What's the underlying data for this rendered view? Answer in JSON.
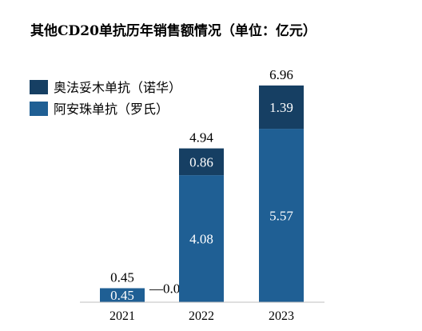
{
  "chart_data": {
    "type": "bar",
    "stacked": true,
    "title": "其他CD20单抗历年销售额情况（单位：亿元）",
    "categories": [
      "2021",
      "2022",
      "2023"
    ],
    "series": [
      {
        "name": "阿安珠单抗（罗氏）",
        "values": [
          0.45,
          4.08,
          5.57
        ],
        "color": "#1f5f94"
      },
      {
        "name": "奥法妥木单抗（诺华）",
        "values": [
          0.0,
          0.86,
          1.39
        ],
        "color": "#163f63"
      }
    ],
    "totals": [
      "0.45",
      "4.94",
      "6.96"
    ],
    "segment_labels": [
      [
        "0.45",
        "4.08",
        "5.57"
      ],
      [
        "0.00",
        "0.86",
        "1.39"
      ]
    ],
    "ylim": [
      0,
      7.6
    ],
    "legend_position": "top-left",
    "grid": false
  }
}
